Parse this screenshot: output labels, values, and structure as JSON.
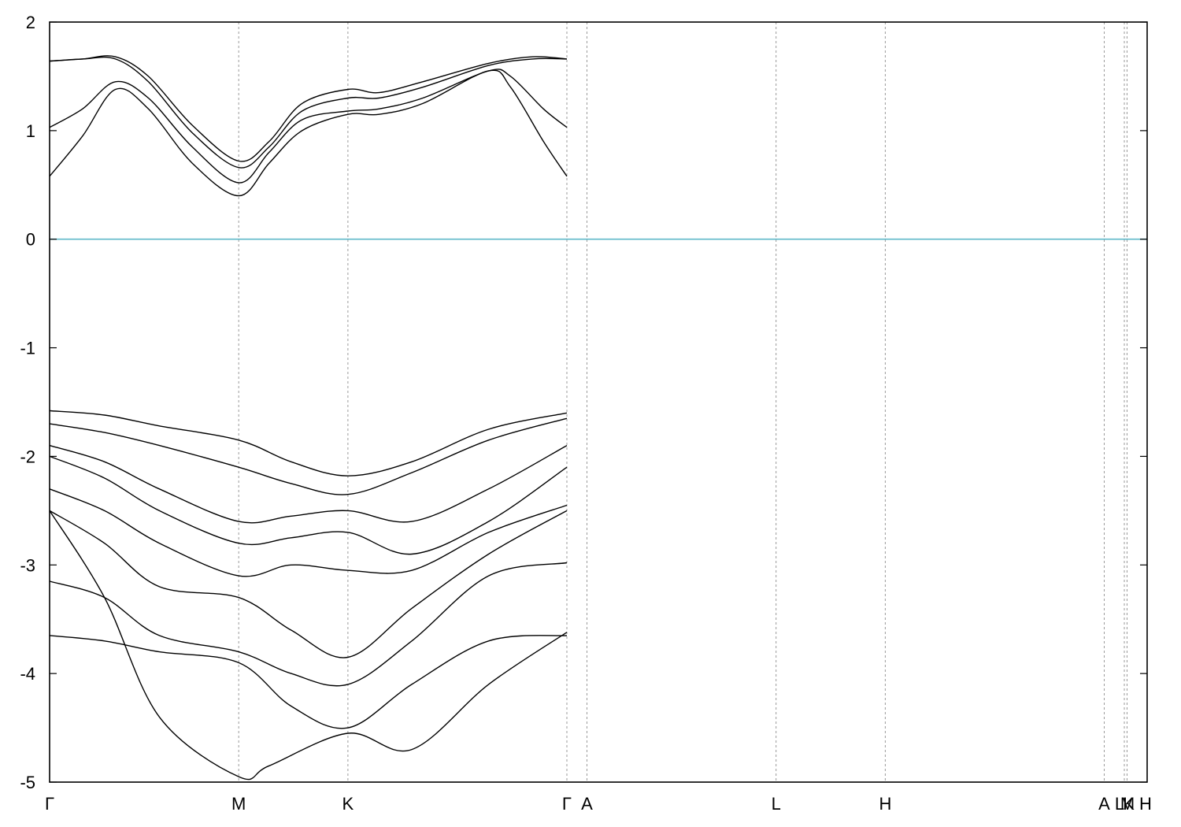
{
  "chart_data": {
    "type": "line",
    "title": "",
    "xlabel": "",
    "ylabel": "",
    "ylim": [
      -5,
      2
    ],
    "yticks": [
      2,
      1,
      0,
      -1,
      -2,
      -3,
      -4,
      -5
    ],
    "ytick_labels": [
      "2",
      "1",
      "0",
      "-1",
      "-2",
      "-3",
      "-4",
      "-5"
    ],
    "x_range": [
      0,
      1
    ],
    "kpoints": [
      {
        "label": "Γ",
        "x": 0.0
      },
      {
        "label": "M",
        "x": 0.1723
      },
      {
        "label": "K",
        "x": 0.2718
      },
      {
        "label": "Γ",
        "x": 0.4713
      },
      {
        "label": "A",
        "x": 0.4896
      },
      {
        "label": "L",
        "x": 0.6619
      },
      {
        "label": "H",
        "x": 0.7614
      },
      {
        "label": "A",
        "x": 0.9609
      },
      {
        "label": "L",
        "x": 0.9792
      },
      {
        "label": "M",
        "x": 0.9792
      },
      {
        "label": "K",
        "x": 0.9817
      },
      {
        "label": "H",
        "x": 1.0
      }
    ],
    "grid": "vertical dashed lines at k-points",
    "fermi_level": {
      "y": 0,
      "color": "#5fb8c9"
    },
    "band_color": "#000000",
    "series": [
      {
        "x": [
          0.0,
          0.03,
          0.06,
          0.09,
          0.13,
          0.1723,
          0.2,
          0.23,
          0.2718,
          0.3,
          0.34,
          0.4,
          0.44,
          0.4713
        ],
        "values": [
          1.64,
          1.66,
          1.68,
          1.5,
          1.05,
          0.72,
          0.9,
          1.25,
          1.38,
          1.35,
          1.45,
          1.62,
          1.68,
          1.66
        ]
      },
      {
        "x": [
          0.0,
          0.03,
          0.06,
          0.09,
          0.13,
          0.1723,
          0.2,
          0.23,
          0.2718,
          0.3,
          0.34,
          0.4,
          0.44,
          0.4713
        ],
        "values": [
          1.64,
          1.66,
          1.66,
          1.45,
          0.98,
          0.66,
          0.85,
          1.18,
          1.3,
          1.3,
          1.4,
          1.6,
          1.66,
          1.66
        ]
      },
      {
        "x": [
          0.0,
          0.03,
          0.06,
          0.09,
          0.13,
          0.1723,
          0.2,
          0.23,
          0.2718,
          0.3,
          0.34,
          0.4,
          0.42,
          0.45,
          0.4713
        ],
        "values": [
          1.03,
          1.2,
          1.45,
          1.3,
          0.85,
          0.52,
          0.8,
          1.1,
          1.18,
          1.2,
          1.3,
          1.55,
          1.5,
          1.2,
          1.03
        ]
      },
      {
        "x": [
          0.0,
          0.03,
          0.06,
          0.09,
          0.13,
          0.1723,
          0.2,
          0.23,
          0.2718,
          0.3,
          0.34,
          0.4,
          0.42,
          0.45,
          0.4713
        ],
        "values": [
          0.58,
          0.95,
          1.38,
          1.2,
          0.7,
          0.4,
          0.7,
          1.0,
          1.15,
          1.15,
          1.25,
          1.55,
          1.4,
          0.9,
          0.58
        ]
      },
      {
        "x": [
          0.0,
          0.05,
          0.1,
          0.1723,
          0.22,
          0.2718,
          0.33,
          0.4,
          0.4713
        ],
        "values": [
          -1.58,
          -1.62,
          -1.72,
          -1.85,
          -2.05,
          -2.18,
          -2.05,
          -1.75,
          -1.6
        ]
      },
      {
        "x": [
          0.0,
          0.05,
          0.1,
          0.1723,
          0.22,
          0.2718,
          0.33,
          0.4,
          0.4713
        ],
        "values": [
          -1.7,
          -1.78,
          -1.9,
          -2.1,
          -2.25,
          -2.35,
          -2.15,
          -1.85,
          -1.65
        ]
      },
      {
        "x": [
          0.0,
          0.05,
          0.1,
          0.1723,
          0.22,
          0.2718,
          0.33,
          0.4,
          0.4713
        ],
        "values": [
          -1.9,
          -2.05,
          -2.3,
          -2.6,
          -2.55,
          -2.5,
          -2.6,
          -2.3,
          -1.9
        ]
      },
      {
        "x": [
          0.0,
          0.05,
          0.1,
          0.1723,
          0.22,
          0.2718,
          0.33,
          0.4,
          0.4713
        ],
        "values": [
          -2.0,
          -2.2,
          -2.5,
          -2.8,
          -2.75,
          -2.7,
          -2.9,
          -2.6,
          -2.1
        ]
      },
      {
        "x": [
          0.0,
          0.05,
          0.1,
          0.1723,
          0.22,
          0.2718,
          0.33,
          0.4,
          0.4713
        ],
        "values": [
          -2.3,
          -2.5,
          -2.8,
          -3.1,
          -3.0,
          -3.05,
          -3.05,
          -2.7,
          -2.45
        ]
      },
      {
        "x": [
          0.0,
          0.05,
          0.1,
          0.1723,
          0.22,
          0.2718,
          0.33,
          0.4,
          0.4713
        ],
        "values": [
          -2.5,
          -2.8,
          -3.2,
          -3.3,
          -3.6,
          -3.85,
          -3.4,
          -2.9,
          -2.5
        ]
      },
      {
        "x": [
          0.0,
          0.05,
          0.1,
          0.1723,
          0.22,
          0.2718,
          0.33,
          0.4,
          0.4713
        ],
        "values": [
          -3.15,
          -3.3,
          -3.65,
          -3.8,
          -4.0,
          -4.1,
          -3.7,
          -3.1,
          -2.98
        ]
      },
      {
        "x": [
          0.0,
          0.05,
          0.1,
          0.1723,
          0.22,
          0.2718,
          0.33,
          0.4,
          0.4713
        ],
        "values": [
          -3.65,
          -3.7,
          -3.8,
          -3.9,
          -4.3,
          -4.5,
          -4.1,
          -3.7,
          -3.65
        ]
      },
      {
        "x": [
          0.0,
          0.05,
          0.1,
          0.1723,
          0.2,
          0.2718,
          0.33,
          0.4,
          0.4713
        ],
        "values": [
          -2.5,
          -3.3,
          -4.4,
          -4.95,
          -4.85,
          -4.55,
          -4.7,
          -4.1,
          -3.62
        ]
      }
    ]
  }
}
